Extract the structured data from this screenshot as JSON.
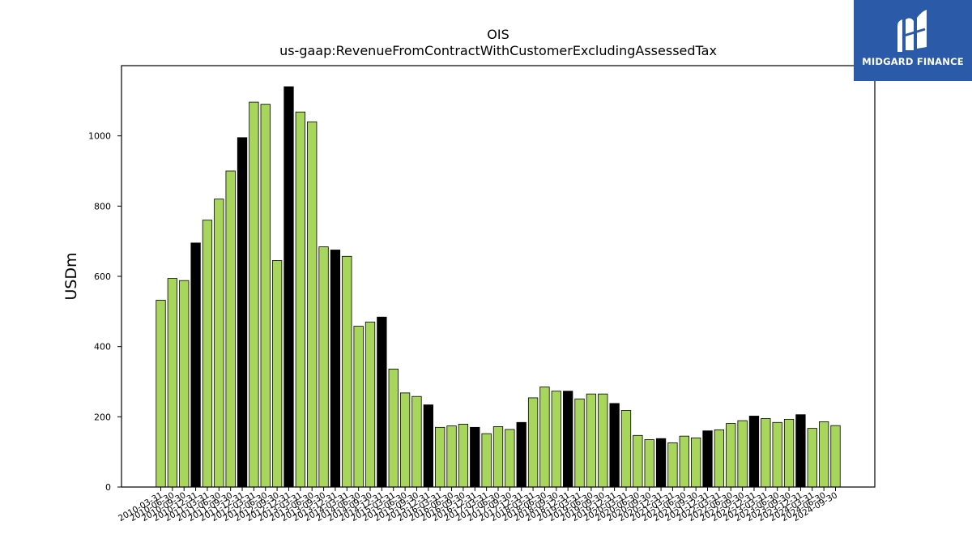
{
  "chart_data": {
    "type": "bar",
    "title": "OIS",
    "subtitle": "us-gaap:RevenueFromContractWithCustomerExcludingAssessedTax",
    "ylabel": "USDm",
    "ylim": [
      0,
      1200
    ],
    "yticks": [
      0,
      200,
      400,
      600,
      800,
      1000
    ],
    "grid": false,
    "colors": {
      "quarter": "#a8d65c",
      "fiscal_year_end": "#000000",
      "edge": "#000000"
    },
    "categories": [
      "2010-03-31",
      "2010-06-30",
      "2010-09-30",
      "2010-12-31",
      "2011-03-31",
      "2011-06-30",
      "2011-09-30",
      "2011-12-31",
      "2012-03-31",
      "2012-06-30",
      "2012-09-30",
      "2012-12-31",
      "2013-03-31",
      "2013-06-30",
      "2013-09-30",
      "2013-12-31",
      "2014-03-31",
      "2014-06-30",
      "2014-09-30",
      "2014-12-31",
      "2015-03-31",
      "2015-06-30",
      "2015-09-30",
      "2015-12-31",
      "2016-03-31",
      "2016-06-30",
      "2016-09-30",
      "2016-12-31",
      "2017-03-31",
      "2017-06-30",
      "2017-09-30",
      "2017-12-31",
      "2018-03-31",
      "2018-06-30",
      "2018-09-30",
      "2018-12-31",
      "2019-03-31",
      "2019-06-30",
      "2019-09-30",
      "2019-12-31",
      "2020-03-31",
      "2020-06-30",
      "2020-09-30",
      "2020-12-31",
      "2021-03-31",
      "2021-06-30",
      "2021-09-30",
      "2021-12-31",
      "2022-03-31",
      "2022-06-30",
      "2022-09-30",
      "2022-12-31",
      "2023-03-31",
      "2023-06-30",
      "2023-09-30",
      "2023-12-31",
      "2024-03-31",
      "2024-06-30",
      "2024-09-30"
    ],
    "values": [
      532,
      594,
      588,
      695,
      760,
      820,
      900,
      995,
      1096,
      1090,
      645,
      1140,
      1068,
      1040,
      684,
      675,
      657,
      458,
      470,
      484,
      336,
      268,
      258,
      234,
      170,
      174,
      179,
      170,
      152,
      172,
      164,
      184,
      254,
      285,
      273,
      273,
      251,
      265,
      265,
      238,
      218,
      147,
      135,
      138,
      126,
      145,
      140,
      160,
      163,
      181,
      189,
      202,
      195,
      184,
      193,
      206,
      167,
      186,
      175
    ],
    "highlight": [
      false,
      false,
      false,
      true,
      false,
      false,
      false,
      true,
      false,
      false,
      false,
      true,
      false,
      false,
      false,
      true,
      false,
      false,
      false,
      true,
      false,
      false,
      false,
      true,
      false,
      false,
      false,
      true,
      false,
      false,
      false,
      true,
      false,
      false,
      false,
      true,
      false,
      false,
      false,
      true,
      false,
      false,
      false,
      true,
      false,
      false,
      false,
      true,
      false,
      false,
      false,
      true,
      false,
      false,
      false,
      true,
      false,
      false,
      false
    ]
  },
  "brand": {
    "name": "MIDGARD FINANCE",
    "logo_icon": "midgard-m-icon",
    "color": "#2a5aa8"
  }
}
